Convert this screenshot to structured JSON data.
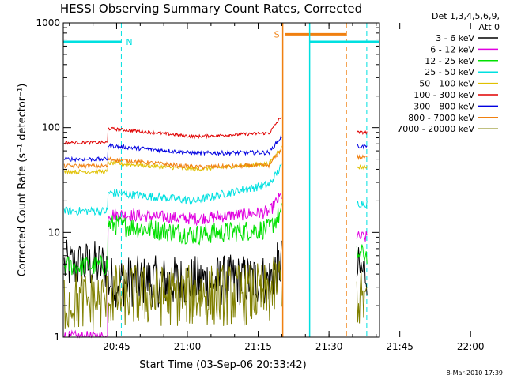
{
  "chart_data": {
    "type": "line",
    "title": "HESSI Observing Summary Count Rates, Corrected",
    "xlabel": "Start Time (03-Sep-06 20:33:42)",
    "ylabel": "Corrected Count Rate (s⁻¹ detector⁻¹)",
    "yscale": "log",
    "ylim": [
      1,
      1000
    ],
    "xlim_minutes": [
      0,
      67
    ],
    "xticks": [
      {
        "label": "20:45",
        "min": 11.3
      },
      {
        "label": "21:00",
        "min": 26.3
      },
      {
        "label": "21:15",
        "min": 41.3
      },
      {
        "label": "21:30",
        "min": 56.3
      },
      {
        "label": "21:45",
        "min": 71.3
      },
      {
        "label": "22:00",
        "min": 86.3
      }
    ],
    "yticks": [
      {
        "label": "1",
        "value": 1
      },
      {
        "label": "10",
        "value": 10
      },
      {
        "label": "100",
        "value": 100
      },
      {
        "label": "1000",
        "value": 1000
      }
    ],
    "legend_header": [
      "Det 1,3,4,5,6,9,",
      "Att 0"
    ],
    "legend_position": "right",
    "annotations": [
      {
        "text": "N",
        "color": "#00e0e0"
      },
      {
        "text": "S",
        "color": "#f08010"
      }
    ],
    "footer": "8-Mar-2010 17:39",
    "series": [
      {
        "name": "3 - 6 keV",
        "color": "#000000",
        "pre": 4.8,
        "start": 3.4,
        "mid": 3.4,
        "end": 3.6,
        "post": 4.2,
        "noise": 0.25
      },
      {
        "name": "6 - 12 keV",
        "color": "#e000e0",
        "pre": 1.0,
        "start": 15.0,
        "mid": 13.5,
        "end": 16.0,
        "post": 9.0,
        "noise": 0.06
      },
      {
        "name": "12 - 25 keV",
        "color": "#00e000",
        "pre": 4.8,
        "start": 12.0,
        "mid": 9.5,
        "end": 11.0,
        "post": 6.2,
        "noise": 0.1
      },
      {
        "name": "25 - 50 keV",
        "color": "#00e0e0",
        "pre": 16.0,
        "start": 24.0,
        "mid": 20.0,
        "end": 30.0,
        "post": 19.0,
        "noise": 0.04
      },
      {
        "name": "50 - 100 keV",
        "color": "#e0c000",
        "pre": 38.0,
        "start": 46.0,
        "mid": 40.0,
        "end": 46.0,
        "post": 42.0,
        "noise": 0.02
      },
      {
        "name": "100 - 300 keV",
        "color": "#e00000",
        "pre": 72.0,
        "start": 98.0,
        "mid": 82.0,
        "end": 90.0,
        "post": 90.0,
        "noise": 0.015
      },
      {
        "name": "300 - 800 keV",
        "color": "#0000e0",
        "pre": 50.0,
        "start": 67.0,
        "mid": 57.0,
        "end": 58.0,
        "post": 66.0,
        "noise": 0.02
      },
      {
        "name": "800 - 7000 keV",
        "color": "#f08010",
        "pre": 43.0,
        "start": 50.0,
        "mid": 42.0,
        "end": 44.0,
        "post": 52.0,
        "noise": 0.02
      },
      {
        "name": "7000 - 20000 keV",
        "color": "#808000",
        "pre": 2.2,
        "start": 2.5,
        "mid": 2.5,
        "end": 2.6,
        "post": 2.3,
        "noise": 0.3
      }
    ],
    "segments": {
      "pre_end_min": 9.5,
      "gap_start_min": 46.3,
      "gap_end_min": 61.0,
      "end_min": 64.5
    }
  }
}
